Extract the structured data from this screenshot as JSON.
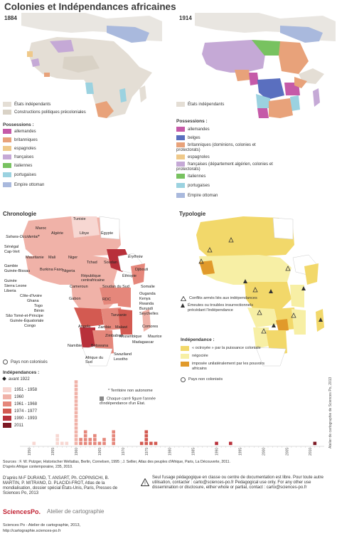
{
  "title": "Colonies et Indépendances africaines",
  "map1884": {
    "label": "1884",
    "legend_top": [
      {
        "label": "États indépendants",
        "color": "#e4ded5"
      },
      {
        "label": "Constructions politiques précoloniales",
        "color": "#d9d2c6"
      }
    ],
    "possessions_title": "Possessions :",
    "possessions": [
      {
        "label": "allemandes",
        "color": "#c55aa8"
      },
      {
        "label": "britanniques",
        "color": "#e8a27a"
      },
      {
        "label": "espagnoles",
        "color": "#efc98a"
      },
      {
        "label": "françaises",
        "color": "#c5a9d6"
      },
      {
        "label": "italiennes",
        "color": "#78c260"
      },
      {
        "label": "portugaises",
        "color": "#9bd2e0"
      }
    ],
    "ottoman": {
      "label": "Empire ottoman",
      "color": "#a9b9dd"
    }
  },
  "map1914": {
    "label": "1914",
    "legend_top": [
      {
        "label": "États indépendants",
        "color": "#e4ded5"
      }
    ],
    "possessions_title": "Possessions :",
    "possessions": [
      {
        "label": "allemandes",
        "color": "#c55aa8"
      },
      {
        "label": "belges",
        "color": "#5a6fbf"
      },
      {
        "label": "britanniques (dominions, colonies et protectorats)",
        "color": "#e8a27a"
      },
      {
        "label": "espagnoles",
        "color": "#efc98a"
      },
      {
        "label": "françaises (département algérien, colonies et protectorats)",
        "color": "#c5a9d6"
      },
      {
        "label": "italiennes",
        "color": "#78c260"
      },
      {
        "label": "portugaises",
        "color": "#9bd2e0"
      }
    ],
    "ottoman": {
      "label": "Empire ottoman",
      "color": "#a9b9dd"
    }
  },
  "chronologie": {
    "label": "Chronologie",
    "countries": [
      "Sahara-Occidental*",
      "Maroc",
      "Tunisie",
      "Algérie",
      "Libye",
      "Égypte",
      "Sénégal",
      "Cap-Vert",
      "Gambie",
      "Guinée-Bissau",
      "Guinée",
      "Sierra Leone",
      "Liberia",
      "Mauritanie",
      "Mali",
      "Niger",
      "Tchad",
      "Soudan",
      "Érythrée",
      "Djibouti",
      "Éthiopie",
      "Somalie",
      "Burkina Faso",
      "Côte-d'Ivoire",
      "Ghana",
      "Togo",
      "Bénin",
      "Nigeria",
      "Cameroun",
      "République centrafricaine",
      "Soudan du Sud",
      "São Tomé-et-Principe",
      "Guinée-Équatoriale",
      "Gabon",
      "Congo",
      "RDC",
      "Ouganda",
      "Kenya",
      "Rwanda",
      "Burundi",
      "Seychelles",
      "Tanzanie",
      "Angola",
      "Zambie",
      "Malawi",
      "Mozambique",
      "Zimbabwe",
      "Comores",
      "Madagascar",
      "Maurice",
      "Namibie",
      "Botswana",
      "Afrique du Sud",
      "Swaziland",
      "Lesotho"
    ],
    "legend_non_colonized": "Pays non colonisés",
    "independence_title": "Indépendances :",
    "independence_classes": [
      {
        "label": "avant 1922",
        "color": "#ffffff"
      },
      {
        "label": "1951 - 1958",
        "color": "#f7d7d2"
      },
      {
        "label": "1960",
        "color": "#f0b2a8"
      },
      {
        "label": "1961 - 1968",
        "color": "#e5877b"
      },
      {
        "label": "1974 - 1977",
        "color": "#d35a51"
      },
      {
        "label": "1990 - 1993",
        "color": "#b8303a"
      },
      {
        "label": "2011",
        "color": "#7d1a24"
      }
    ],
    "note_territory": "* Territoire non autonome",
    "note_square": "Chaque carré figure l'année d'indépendance d'un État.",
    "timeline_ticks": [
      "1950",
      "1955",
      "1960",
      "1965",
      "1970",
      "1975",
      "1980",
      "1985",
      "1990",
      "1995",
      "2000",
      "2005",
      "2010"
    ],
    "timeline_extra_labels": [
      "1977",
      "1968",
      "2012"
    ],
    "chart_data": {
      "type": "bar",
      "x": [
        1951,
        1956,
        1957,
        1958,
        1960,
        1961,
        1962,
        1963,
        1964,
        1965,
        1966,
        1967,
        1968,
        1974,
        1975,
        1976,
        1977,
        1990,
        1993,
        2011
      ],
      "values": [
        1,
        3,
        1,
        1,
        17,
        2,
        4,
        2,
        3,
        1,
        2,
        0,
        4,
        1,
        4,
        1,
        1,
        1,
        1,
        1
      ]
    }
  },
  "typologie": {
    "label": "Typologie",
    "symbols": [
      {
        "label": "Conflits armés liés aux indépendances",
        "symbol": "triangle-empty"
      },
      {
        "label": "Émeutes ou troubles insurrectionnels précédant l'indépendance",
        "symbol": "triangle-filled"
      }
    ],
    "independence_title": "Indépendance :",
    "classes": [
      {
        "label": "« octroyée » par la puissance coloniale",
        "color": "#f2d86a"
      },
      {
        "label": "négociée",
        "color": "#f7efa5"
      },
      {
        "label": "imposée unilatéralement par les pouvoirs africains",
        "color": "#e19a2b"
      }
    ],
    "non_colonized": "Pays non colonisés"
  },
  "credits": {
    "side": "Atelier de cartographie de Sciences Po, 2013",
    "sources_1": "Sources : F. W. Putzger, Historischer Weltatlas, Berlin, Cornelsen, 1995 ; J. Sellier, Atlas des peuples d'Afrique, Paris, La Découverte, 2011.",
    "sources_2": "D'après Afrique contemporaine, 235, 2010.",
    "authors": "D'après M-F DURAND, T. ANSART, Ph. COPINSCHI, B. MARTIN, P. MITRANO, D. PLACIDI-FROT, Atlas de la mondialisation, dossier spécial États-Unis, Paris, Presses de Sciences Po, 2013",
    "logo": "SciencesPo.",
    "atelier": "Atelier de cartographie",
    "footer_1": "Sciences Po - Atelier de cartographie, 2013,",
    "footer_2": "http://cartographie.sciences-po.fr",
    "warning": "Seul l'usage pédagogique en classe ou centre de documentation est libre. Pour toute autre utilisation, contacter : carto@sciences-po.fr Pedagogical use only. For any other use dissemination or disclosure, either whole or partial, contact : carto@sciences-po.fr"
  }
}
